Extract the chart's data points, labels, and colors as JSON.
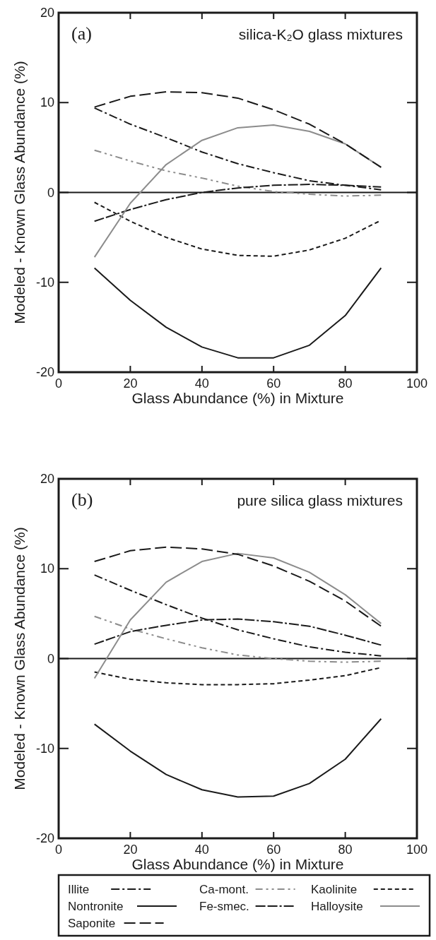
{
  "chart_data": [
    {
      "type": "line",
      "xlabel": "Glass Abundance (%) in Mixture",
      "ylabel": "Modeled - Known Glass Abundance (%)",
      "annotations": [
        "(a)",
        "silica-K₂O glass mixtures"
      ],
      "x": [
        10,
        20,
        30,
        40,
        50,
        60,
        70,
        80,
        90
      ],
      "xlim": [
        0,
        100
      ],
      "xticks": [
        0,
        20,
        40,
        60,
        80,
        100
      ],
      "ylim": [
        -20,
        20
      ],
      "yticks": [
        -20,
        -10,
        0,
        10,
        20
      ],
      "ref_lines": [
        {
          "axis": "y",
          "value": 0
        }
      ],
      "grid": false,
      "legend": false,
      "series": [
        {
          "color": "#1a1a1a",
          "line_style": "dashdot",
          "values": [
            9.4,
            7.6,
            6.1,
            4.5,
            3.2,
            2.2,
            1.3,
            0.8,
            0.3
          ]
        },
        {
          "color": "#8c8c8c",
          "line_style": "dashdotdot",
          "values": [
            4.7,
            3.5,
            2.4,
            1.6,
            0.7,
            0.1,
            -0.2,
            -0.4,
            -0.3
          ]
        },
        {
          "color": "#1a1a1a",
          "line_style": "dashed",
          "values": [
            -1.1,
            -3.2,
            -5.0,
            -6.3,
            -7.0,
            -7.1,
            -6.4,
            -5.1,
            -3.1
          ]
        },
        {
          "color": "#1a1a1a",
          "line_style": "solid",
          "values": [
            -8.4,
            -12.0,
            -15.0,
            -17.2,
            -18.4,
            -18.4,
            -17.0,
            -13.7,
            -8.4
          ]
        },
        {
          "color": "#1a1a1a",
          "line_style": "dashdashdot",
          "values": [
            -3.2,
            -1.9,
            -0.8,
            0.0,
            0.5,
            0.8,
            0.9,
            0.8,
            0.6
          ]
        },
        {
          "color": "#8c8c8c",
          "line_style": "solid",
          "values": [
            -7.2,
            -1.2,
            3.1,
            5.8,
            7.2,
            7.5,
            6.8,
            5.4,
            2.8
          ]
        },
        {
          "color": "#1a1a1a",
          "line_style": "longdash",
          "values": [
            9.5,
            10.7,
            11.2,
            11.1,
            10.5,
            9.2,
            7.6,
            5.4,
            2.8
          ]
        }
      ]
    },
    {
      "type": "line",
      "xlabel": "Glass Abundance (%) in Mixture",
      "ylabel": "Modeled - Known Glass Abundance (%)",
      "annotations": [
        "(b)",
        "pure silica glass mixtures"
      ],
      "x": [
        10,
        20,
        30,
        40,
        50,
        60,
        70,
        80,
        90
      ],
      "xlim": [
        0,
        100
      ],
      "xticks": [
        0,
        20,
        40,
        60,
        80,
        100
      ],
      "ylim": [
        -20,
        20
      ],
      "yticks": [
        -20,
        -10,
        0,
        10,
        20
      ],
      "ref_lines": [
        {
          "axis": "y",
          "value": 0
        }
      ],
      "grid": false,
      "legend": "bottom",
      "series": [
        {
          "name": "Illite",
          "color": "#1a1a1a",
          "line_style": "dashdot",
          "values": [
            9.3,
            7.6,
            6.0,
            4.5,
            3.2,
            2.2,
            1.3,
            0.7,
            0.3
          ]
        },
        {
          "name": "Ca-mont.",
          "color": "#8c8c8c",
          "line_style": "dashdotdot",
          "values": [
            4.7,
            3.3,
            2.2,
            1.2,
            0.4,
            0.0,
            -0.3,
            -0.4,
            -0.3
          ]
        },
        {
          "name": "Kaolinite",
          "color": "#1a1a1a",
          "line_style": "dashed",
          "values": [
            -1.5,
            -2.3,
            -2.7,
            -2.9,
            -2.9,
            -2.8,
            -2.4,
            -1.9,
            -1.0
          ]
        },
        {
          "name": "Nontronite",
          "color": "#1a1a1a",
          "line_style": "solid",
          "values": [
            -7.3,
            -10.3,
            -12.9,
            -14.6,
            -15.4,
            -15.3,
            -13.9,
            -11.2,
            -6.7
          ]
        },
        {
          "name": "Fe-smec.",
          "color": "#1a1a1a",
          "line_style": "dashdashdot",
          "values": [
            1.6,
            3.0,
            3.7,
            4.3,
            4.4,
            4.1,
            3.6,
            2.6,
            1.5
          ]
        },
        {
          "name": "Halloysite",
          "color": "#8c8c8c",
          "line_style": "solid",
          "values": [
            -2.2,
            4.3,
            8.5,
            10.8,
            11.7,
            11.2,
            9.6,
            7.1,
            3.9
          ]
        },
        {
          "name": "Saponite",
          "color": "#1a1a1a",
          "line_style": "longdash",
          "values": [
            10.8,
            12.0,
            12.4,
            12.2,
            11.6,
            10.3,
            8.6,
            6.4,
            3.6
          ]
        }
      ]
    }
  ]
}
